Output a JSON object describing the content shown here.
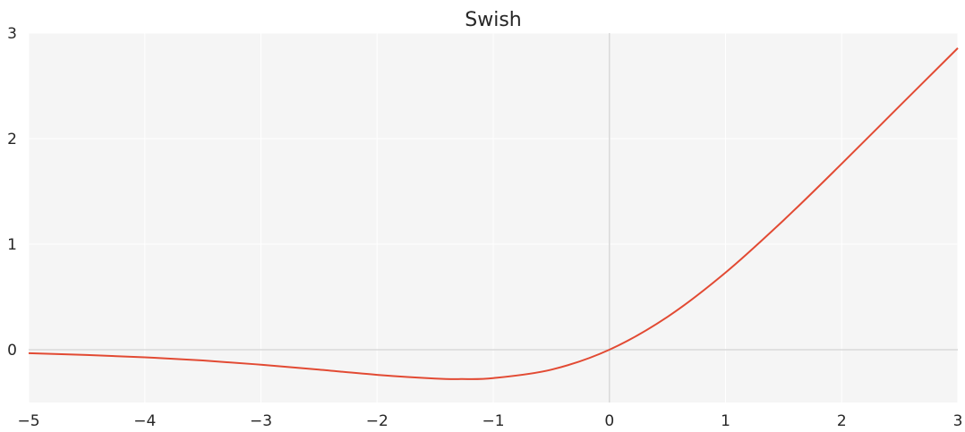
{
  "chart_data": {
    "type": "line",
    "title": "Swish",
    "xlabel": "",
    "ylabel": "",
    "xlim": [
      -5,
      3
    ],
    "ylim": [
      -0.5,
      3
    ],
    "x_ticks": [
      -5,
      -4,
      -3,
      -2,
      -1,
      0,
      1,
      2,
      3
    ],
    "x_tick_labels": [
      "−5",
      "−4",
      "−3",
      "−2",
      "−1",
      "0",
      "1",
      "2",
      "3"
    ],
    "y_ticks": [
      0,
      1,
      2,
      3
    ],
    "y_tick_labels": [
      "0",
      "1",
      "2",
      "3"
    ],
    "grid": true,
    "background_color": "#f5f5f5",
    "grid_color": "#ffffff",
    "zero_line_color": "#d9d9d9",
    "series": [
      {
        "color": "#e24a33",
        "x": [
          -5.0,
          -4.5,
          -4.0,
          -3.5,
          -3.0,
          -2.5,
          -2.0,
          -1.5,
          -1.278,
          -1.0,
          -0.5,
          0.0,
          0.5,
          1.0,
          1.5,
          2.0,
          2.5,
          3.0
        ],
        "y": [
          -0.033,
          -0.05,
          -0.072,
          -0.102,
          -0.142,
          -0.189,
          -0.238,
          -0.273,
          -0.278,
          -0.269,
          -0.189,
          0.0,
          0.311,
          0.731,
          1.227,
          1.762,
          2.311,
          2.858
        ]
      }
    ]
  }
}
